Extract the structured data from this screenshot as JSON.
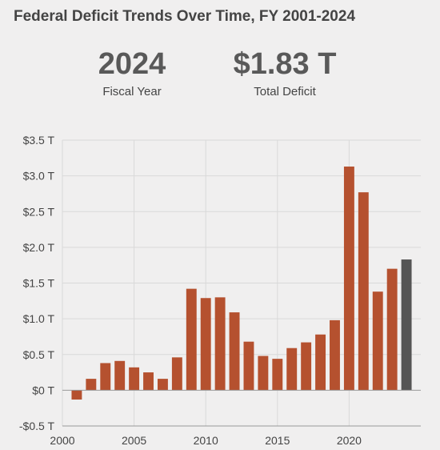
{
  "title": "Federal Deficit Trends Over Time, FY 2001-2024",
  "stats": {
    "year": {
      "value": "2024",
      "label": "Fiscal Year"
    },
    "deficit": {
      "value": "$1.83 T",
      "label": "Total Deficit"
    }
  },
  "colors": {
    "bar": "#b5512f",
    "highlight": "#555555",
    "grid": "#d9d9d9",
    "axis": "#999999"
  },
  "chart_data": {
    "type": "bar",
    "x": [
      2001,
      2002,
      2003,
      2004,
      2005,
      2006,
      2007,
      2008,
      2009,
      2010,
      2011,
      2012,
      2013,
      2014,
      2015,
      2016,
      2017,
      2018,
      2019,
      2020,
      2021,
      2022,
      2023,
      2024
    ],
    "values": [
      -0.13,
      0.16,
      0.38,
      0.41,
      0.32,
      0.25,
      0.16,
      0.46,
      1.42,
      1.29,
      1.3,
      1.09,
      0.68,
      0.48,
      0.44,
      0.59,
      0.67,
      0.78,
      0.98,
      3.13,
      2.77,
      1.38,
      1.7,
      1.83
    ],
    "highlight_x": 2024,
    "xlim": [
      2000,
      2025
    ],
    "ylim": [
      -0.5,
      3.5
    ],
    "y_ticks": [
      -0.5,
      0,
      0.5,
      1.0,
      1.5,
      2.0,
      2.5,
      3.0,
      3.5
    ],
    "y_tick_labels": [
      "-$0.5 T",
      "$0 T",
      "$0.5 T",
      "$1.0 T",
      "$1.5 T",
      "$2.0 T",
      "$2.5 T",
      "$3.0 T",
      "$3.5 T"
    ],
    "x_ticks": [
      2000,
      2005,
      2010,
      2015,
      2020
    ],
    "x_tick_labels": [
      "2000",
      "2005",
      "2010",
      "2015",
      "2020"
    ],
    "grid": true,
    "xlabel": "",
    "ylabel": ""
  }
}
